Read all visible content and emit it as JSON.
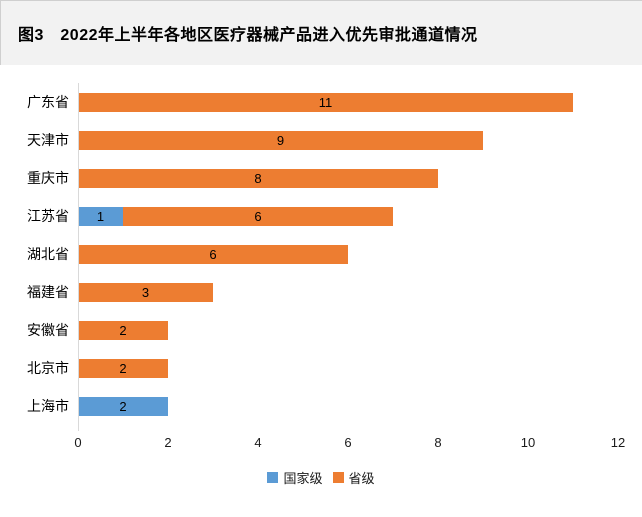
{
  "title": "图3　2022年上半年各地区医疗器械产品进入优先审批通道情况",
  "chart_data": {
    "type": "bar",
    "orientation": "horizontal",
    "stacked": true,
    "title": "图3　2022年上半年各地区医疗器械产品进入优先审批通道情况",
    "categories": [
      "广东省",
      "天津市",
      "重庆市",
      "江苏省",
      "湖北省",
      "福建省",
      "安徽省",
      "北京市",
      "上海市"
    ],
    "series": [
      {
        "name": "国家级",
        "color": "#5B9BD5",
        "values": [
          0,
          0,
          0,
          1,
          0,
          0,
          0,
          0,
          2
        ]
      },
      {
        "name": "省级",
        "color": "#ED7D31",
        "values": [
          11,
          9,
          8,
          6,
          6,
          3,
          2,
          2,
          0
        ]
      }
    ],
    "totals": [
      11,
      9,
      8,
      7,
      6,
      3,
      2,
      2,
      2
    ],
    "xlabel": "",
    "ylabel": "",
    "xlim": [
      0,
      12
    ],
    "x_ticks": [
      0,
      2,
      4,
      6,
      8,
      10,
      12
    ],
    "grid": false,
    "data_labels": "centered-in-segment",
    "legend_position": "bottom",
    "axis_line_color": "#d9d9d9",
    "label_color": "#000000"
  }
}
